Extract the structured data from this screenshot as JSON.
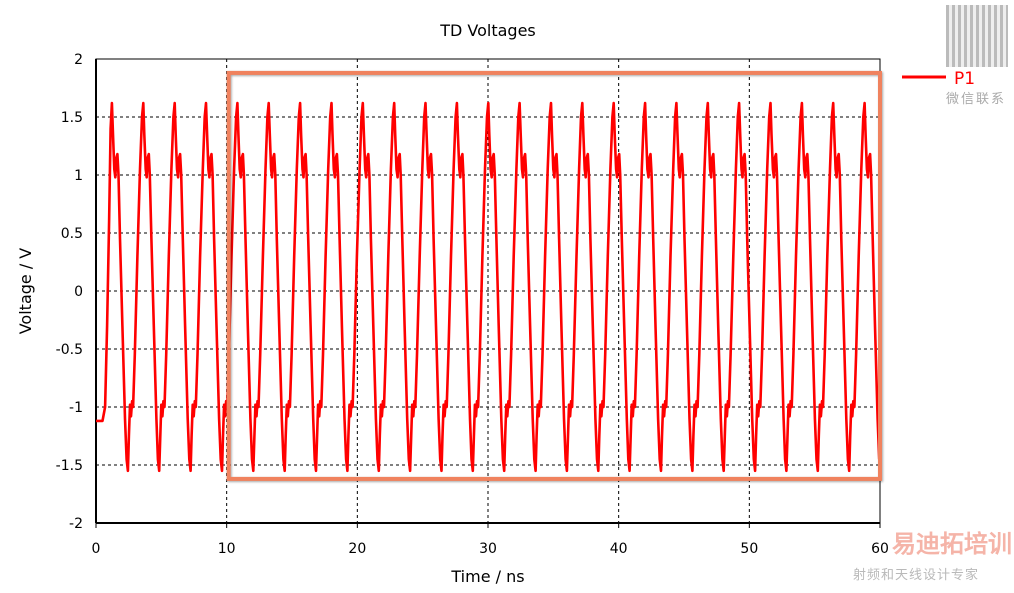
{
  "chart_data": {
    "type": "line",
    "title": "TD Voltages",
    "xlabel": "Time / ns",
    "ylabel": "Voltage / V",
    "xlim": [
      0,
      60
    ],
    "ylim": [
      -2,
      2
    ],
    "xticks": [
      "0",
      "10",
      "20",
      "30",
      "40",
      "50",
      "60"
    ],
    "yticks": [
      "2",
      "1.5",
      "1",
      "0.5",
      "0",
      "-0.5",
      "-1",
      "-1.5",
      "-2"
    ],
    "grid": true,
    "legend": "top-right",
    "series": [
      {
        "name": "P1",
        "color": "#ff0000",
        "initial_level": -1.12,
        "initial_until_ns": 0.5,
        "first_peak_ns": 1.22,
        "period_ns": 2.4,
        "end_ns": 60,
        "cycle": {
          "t": [
            0,
            0.08,
            0.18,
            0.26,
            0.34,
            0.42,
            0.5,
            0.62,
            0.8,
            1.0,
            1.12,
            1.22,
            1.3,
            1.38,
            1.46,
            1.54,
            1.62,
            1.75,
            1.95,
            2.15,
            2.3,
            2.4
          ],
          "v": [
            1.62,
            1.35,
            1.05,
            0.98,
            1.15,
            1.18,
            1.0,
            0.45,
            -0.3,
            -1.1,
            -1.45,
            -1.55,
            -1.25,
            -0.98,
            -1.08,
            -0.95,
            -1.0,
            -0.55,
            0.3,
            1.05,
            1.5,
            1.62
          ]
        }
      }
    ],
    "annotation": {
      "type": "highlight-rectangle",
      "color": "#f0825e",
      "x_range": [
        10,
        60
      ],
      "y_range": [
        -1.62,
        1.88
      ]
    }
  },
  "watermarks": {
    "qr_caption": "微信联系",
    "brand": "易迪拓培训",
    "slogan": "射频和天线设计专家"
  }
}
